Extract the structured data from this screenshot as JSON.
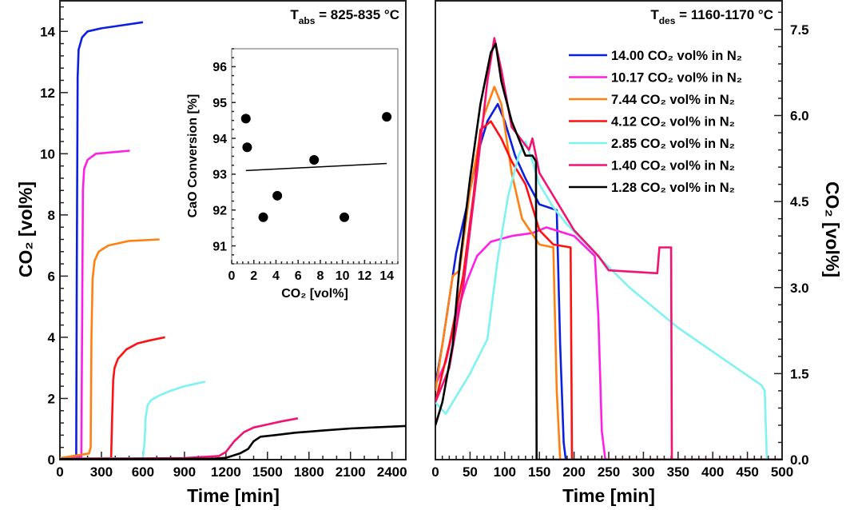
{
  "chart_data": [
    {
      "id": "absorption",
      "type": "line",
      "title_main": "T",
      "title_sub": "abs",
      "title_rest": " = 825-835 °C",
      "xlabel": "Time [min]",
      "ylabel": "CO₂ [vol%]",
      "xlim": [
        0,
        2500
      ],
      "ylim": [
        0,
        15
      ],
      "xticks": [
        0,
        300,
        600,
        900,
        1200,
        1500,
        1800,
        2100,
        2400
      ],
      "yticks": [
        0,
        2,
        4,
        6,
        8,
        10,
        12,
        14
      ],
      "grid": false,
      "series": [
        {
          "color": "#0a1fe0",
          "x": [
            0,
            118,
            122,
            128,
            135,
            160,
            200,
            300,
            450,
            600
          ],
          "y": [
            0.03,
            0.05,
            6,
            12.5,
            13.4,
            13.8,
            14.0,
            14.1,
            14.2,
            14.3
          ]
        },
        {
          "color": "#ff1ee6",
          "x": [
            0,
            155,
            160,
            166,
            175,
            200,
            260,
            380,
            505
          ],
          "y": [
            0.03,
            0.1,
            4,
            8.8,
            9.5,
            9.8,
            10.0,
            10.05,
            10.1
          ]
        },
        {
          "color": "#ff8010",
          "x": [
            0,
            210,
            222,
            228,
            236,
            250,
            280,
            350,
            500,
            720
          ],
          "y": [
            0.05,
            0.2,
            0.4,
            4,
            5.9,
            6.5,
            6.8,
            7.0,
            7.15,
            7.2
          ]
        },
        {
          "color": "#ff1010",
          "x": [
            0,
            370,
            378,
            385,
            395,
            420,
            480,
            560,
            650,
            760
          ],
          "y": [
            0.03,
            0.05,
            1.5,
            2.6,
            3.0,
            3.3,
            3.6,
            3.8,
            3.9,
            4.0
          ]
        },
        {
          "color": "#7ff2f2",
          "x": [
            0,
            600,
            612,
            620,
            635,
            660,
            720,
            800,
            900,
            1050
          ],
          "y": [
            0.03,
            0.05,
            0.6,
            1.4,
            1.8,
            1.95,
            2.1,
            2.25,
            2.4,
            2.55
          ]
        },
        {
          "color": "#f21273",
          "x": [
            0,
            900,
            1150,
            1200,
            1260,
            1330,
            1400,
            1500,
            1600,
            1720
          ],
          "y": [
            0.02,
            0.05,
            0.12,
            0.25,
            0.6,
            0.9,
            1.05,
            1.15,
            1.25,
            1.35
          ]
        },
        {
          "color": "#000000",
          "x": [
            0,
            1100,
            1200,
            1300,
            1360,
            1400,
            1450,
            1550,
            1700,
            1900,
            2100,
            2300,
            2500
          ],
          "y": [
            0.02,
            0.03,
            0.06,
            0.2,
            0.35,
            0.6,
            0.75,
            0.8,
            0.88,
            0.95,
            1.02,
            1.06,
            1.1
          ]
        }
      ]
    },
    {
      "id": "inset",
      "type": "scatter",
      "xlabel": "CO₂ [vol%]",
      "ylabel": "CaO Conversion [%]",
      "xlim": [
        0,
        15
      ],
      "ylim": [
        90.5,
        96.5
      ],
      "xticks": [
        0,
        2,
        4,
        6,
        8,
        10,
        12,
        14
      ],
      "yticks": [
        91,
        92,
        93,
        94,
        95,
        96
      ],
      "points": {
        "x": [
          1.28,
          1.4,
          2.85,
          4.12,
          7.44,
          10.17,
          14.0
        ],
        "y": [
          94.55,
          93.75,
          91.8,
          92.4,
          93.4,
          91.8,
          94.6
        ]
      },
      "fit_line": {
        "x": [
          1.28,
          14.0
        ],
        "y": [
          93.1,
          93.3
        ]
      }
    },
    {
      "id": "desorption",
      "type": "line",
      "title_main": "T",
      "title_sub": "des",
      "title_rest": " = 1160-1170 °C",
      "xlabel": "Time [min]",
      "ylabel": "CO₂ [vol%]",
      "xlim": [
        0,
        500
      ],
      "ylim": [
        0,
        8
      ],
      "xticks": [
        0,
        50,
        100,
        150,
        200,
        250,
        300,
        350,
        400,
        450,
        500
      ],
      "yticks": [
        0.0,
        1.5,
        3.0,
        4.5,
        6.0,
        7.5
      ],
      "ytick_labels": [
        "0.0",
        "1.5",
        "3.0",
        "4.5",
        "6.0",
        "7.5"
      ],
      "y_axis_side": "right",
      "grid": false,
      "legend_position": "top-right",
      "series": [
        {
          "name": "14.00 CO₂ vol% in N₂",
          "color": "#0a1fe0",
          "x": [
            0,
            10,
            30,
            45,
            60,
            75,
            90,
            100,
            115,
            130,
            150,
            175,
            180,
            185,
            188
          ],
          "y": [
            1.3,
            2.0,
            3.6,
            4.4,
            5.3,
            5.9,
            6.2,
            5.9,
            5.3,
            4.9,
            4.45,
            4.35,
            2.0,
            0.3,
            0
          ]
        },
        {
          "name": "10.17 CO₂ vol% in N₂",
          "color": "#ff1ee6",
          "x": [
            0,
            15,
            30,
            45,
            60,
            80,
            110,
            140,
            160,
            200,
            230,
            235,
            240,
            245,
            500
          ],
          "y": [
            1.3,
            1.7,
            2.5,
            3.1,
            3.55,
            3.8,
            3.9,
            3.95,
            4.05,
            3.9,
            3.55,
            2.5,
            0.5,
            0,
            0
          ]
        },
        {
          "name": "7.44 CO₂ vol% in N₂",
          "color": "#ff8010",
          "x": [
            0,
            10,
            25,
            35,
            50,
            70,
            85,
            95,
            110,
            125,
            150,
            170,
            175,
            180,
            500
          ],
          "y": [
            1.2,
            2.0,
            3.2,
            3.3,
            4.7,
            6.0,
            6.5,
            6.2,
            5.0,
            4.2,
            3.75,
            3.7,
            1.2,
            0,
            0
          ]
        },
        {
          "name": "4.12 CO₂ vol% in N₂",
          "color": "#ff1010",
          "x": [
            0,
            20,
            40,
            55,
            65,
            80,
            95,
            110,
            130,
            150,
            170,
            195,
            197,
            500
          ],
          "y": [
            1.0,
            2.0,
            3.2,
            4.6,
            5.75,
            5.9,
            5.6,
            5.2,
            4.8,
            4.0,
            3.75,
            3.7,
            0,
            0
          ]
        },
        {
          "name": "2.85 CO₂ vol% in N₂",
          "color": "#7ff2f2",
          "x": [
            0,
            15,
            30,
            50,
            75,
            90,
            105,
            120,
            130,
            140,
            150,
            170,
            190,
            230,
            280,
            350,
            410,
            470,
            475,
            478
          ],
          "y": [
            1.0,
            0.8,
            1.1,
            1.5,
            2.1,
            3.5,
            4.6,
            5.3,
            5.55,
            5.2,
            4.8,
            4.4,
            4.1,
            3.6,
            3.0,
            2.3,
            1.8,
            1.3,
            1.2,
            0
          ]
        },
        {
          "name": "1.40 CO₂ vol% in N₂",
          "color": "#f21273",
          "x": [
            0,
            20,
            40,
            60,
            75,
            85,
            95,
            110,
            135,
            140,
            150,
            170,
            200,
            235,
            250,
            320,
            323,
            340,
            341,
            500
          ],
          "y": [
            1.0,
            1.6,
            3.0,
            5.0,
            6.6,
            7.35,
            6.8,
            5.8,
            5.4,
            5.6,
            5.0,
            4.6,
            4.0,
            3.55,
            3.3,
            3.25,
            3.7,
            3.7,
            0,
            0
          ]
        },
        {
          "name": "1.28 CO₂ vol% in N₂",
          "color": "#000000",
          "x": [
            0,
            10,
            25,
            35,
            50,
            65,
            80,
            87,
            95,
            110,
            130,
            140,
            145,
            146,
            500
          ],
          "y": [
            0.6,
            1.0,
            2.0,
            3.4,
            4.9,
            6.2,
            7.1,
            7.25,
            6.6,
            5.9,
            5.3,
            5.3,
            5.2,
            0,
            0
          ]
        }
      ]
    }
  ]
}
